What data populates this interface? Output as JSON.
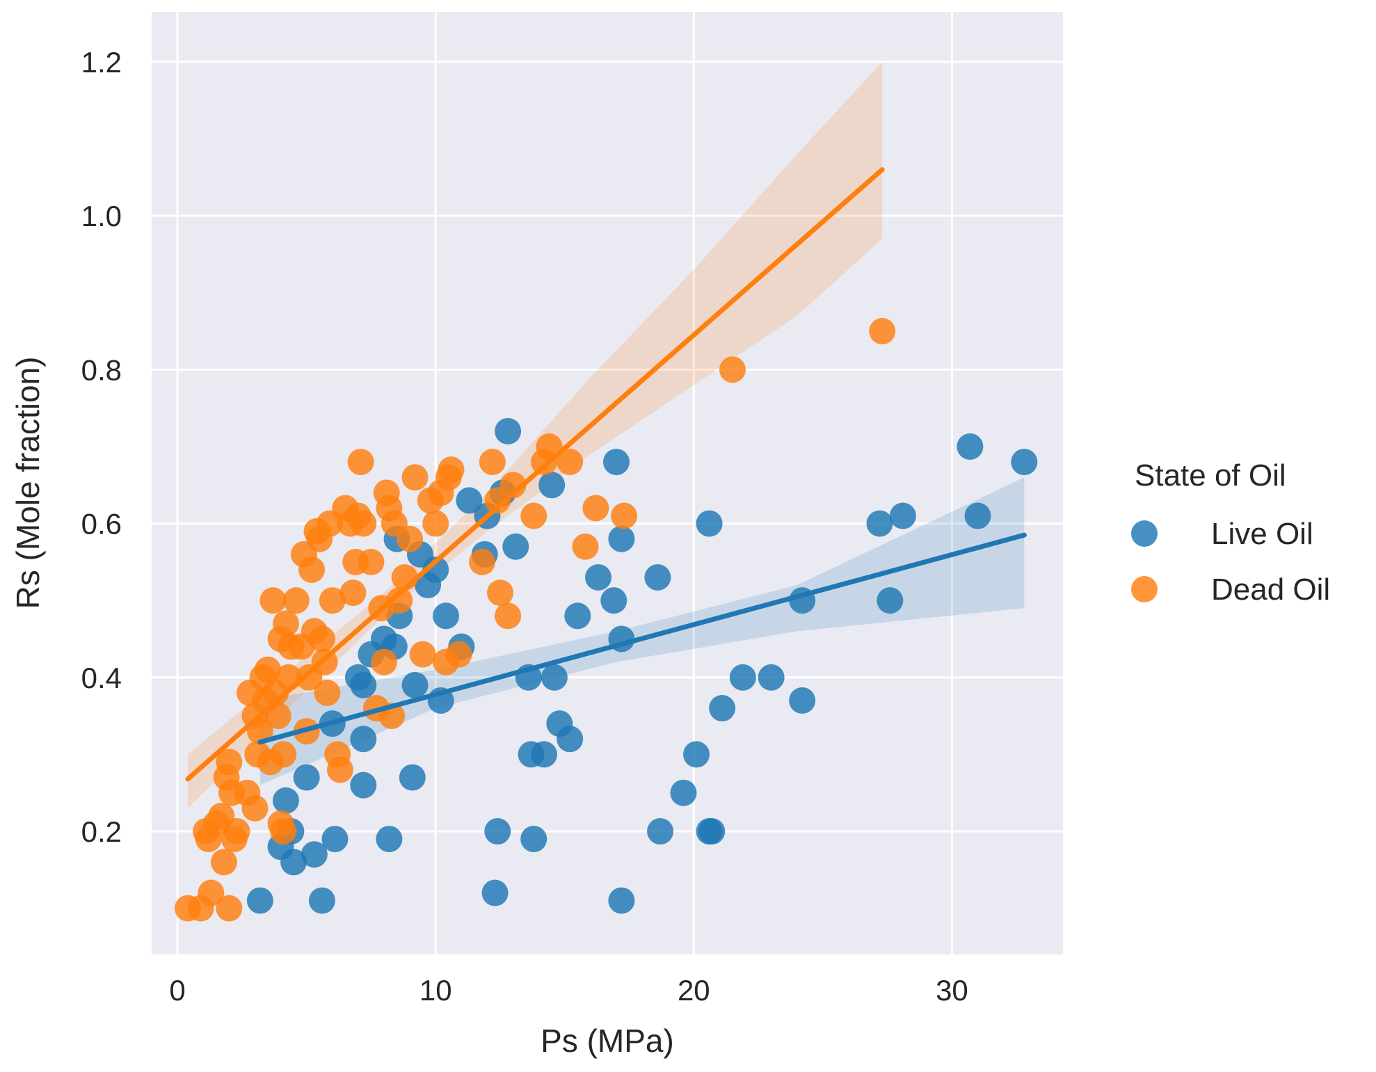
{
  "chart_data": {
    "type": "scatter",
    "xlabel": "Ps (MPa)",
    "ylabel": "Rs (Mole fraction)",
    "xlim": [
      -1,
      34.3
    ],
    "ylim": [
      0.04,
      1.265
    ],
    "xticks": [
      0,
      10,
      20,
      30
    ],
    "xtick_labels": [
      "0",
      "10",
      "20",
      "30"
    ],
    "yticks": [
      0.2,
      0.4,
      0.6,
      0.8,
      1.0,
      1.2
    ],
    "ytick_labels": [
      "0.2",
      "0.4",
      "0.6",
      "0.8",
      "1.0",
      "1.2"
    ],
    "grid": true,
    "background": "#eaeaf2",
    "legend": {
      "title": "State of Oil",
      "placement": "right",
      "entries": [
        "Live Oil",
        "Dead Oil"
      ]
    },
    "series": [
      {
        "name": "Live Oil",
        "color": "#1f77b4",
        "points": [
          [
            3.2,
            0.11
          ],
          [
            4.0,
            0.18
          ],
          [
            4.2,
            0.24
          ],
          [
            4.4,
            0.2
          ],
          [
            4.5,
            0.16
          ],
          [
            5.0,
            0.27
          ],
          [
            5.3,
            0.17
          ],
          [
            5.6,
            0.11
          ],
          [
            6.0,
            0.34
          ],
          [
            6.1,
            0.19
          ],
          [
            7.0,
            0.4
          ],
          [
            7.2,
            0.39
          ],
          [
            7.2,
            0.32
          ],
          [
            7.2,
            0.26
          ],
          [
            7.5,
            0.43
          ],
          [
            8.0,
            0.45
          ],
          [
            8.2,
            0.19
          ],
          [
            8.4,
            0.44
          ],
          [
            8.6,
            0.48
          ],
          [
            8.5,
            0.58
          ],
          [
            9.1,
            0.27
          ],
          [
            9.2,
            0.39
          ],
          [
            9.4,
            0.56
          ],
          [
            9.7,
            0.52
          ],
          [
            10.0,
            0.54
          ],
          [
            10.2,
            0.37
          ],
          [
            10.4,
            0.48
          ],
          [
            11.0,
            0.44
          ],
          [
            11.3,
            0.63
          ],
          [
            11.9,
            0.56
          ],
          [
            12.0,
            0.61
          ],
          [
            12.3,
            0.12
          ],
          [
            12.4,
            0.2
          ],
          [
            12.6,
            0.64
          ],
          [
            12.8,
            0.72
          ],
          [
            13.1,
            0.57
          ],
          [
            13.6,
            0.4
          ],
          [
            13.7,
            0.3
          ],
          [
            13.8,
            0.19
          ],
          [
            14.2,
            0.3
          ],
          [
            14.5,
            0.65
          ],
          [
            14.6,
            0.4
          ],
          [
            14.8,
            0.34
          ],
          [
            15.2,
            0.32
          ],
          [
            15.5,
            0.48
          ],
          [
            16.3,
            0.53
          ],
          [
            16.9,
            0.5
          ],
          [
            17.0,
            0.68
          ],
          [
            17.2,
            0.58
          ],
          [
            17.2,
            0.45
          ],
          [
            17.2,
            0.11
          ],
          [
            18.6,
            0.53
          ],
          [
            18.7,
            0.2
          ],
          [
            19.6,
            0.25
          ],
          [
            20.1,
            0.3
          ],
          [
            20.6,
            0.6
          ],
          [
            20.6,
            0.2
          ],
          [
            20.7,
            0.2
          ],
          [
            21.1,
            0.36
          ],
          [
            21.9,
            0.4
          ],
          [
            23.0,
            0.4
          ],
          [
            24.2,
            0.5
          ],
          [
            24.2,
            0.37
          ],
          [
            27.2,
            0.6
          ],
          [
            27.6,
            0.5
          ],
          [
            28.1,
            0.61
          ],
          [
            30.7,
            0.7
          ],
          [
            31.0,
            0.61
          ],
          [
            32.8,
            0.68
          ]
        ],
        "fit": {
          "x": [
            3.2,
            32.8
          ],
          "y": [
            0.316,
            0.585
          ]
        },
        "ci": {
          "x": [
            3.2,
            10.0,
            17.0,
            24.0,
            32.8
          ],
          "lower": [
            0.26,
            0.36,
            0.42,
            0.46,
            0.49
          ],
          "upper": [
            0.37,
            0.41,
            0.46,
            0.52,
            0.66
          ]
        }
      },
      {
        "name": "Dead Oil",
        "color": "#ff7f0e",
        "points": [
          [
            0.4,
            0.1
          ],
          [
            0.9,
            0.1
          ],
          [
            1.1,
            0.2
          ],
          [
            1.2,
            0.19
          ],
          [
            1.3,
            0.12
          ],
          [
            1.5,
            0.21
          ],
          [
            1.7,
            0.22
          ],
          [
            1.8,
            0.16
          ],
          [
            1.9,
            0.27
          ],
          [
            2.0,
            0.1
          ],
          [
            2.0,
            0.29
          ],
          [
            2.1,
            0.25
          ],
          [
            2.2,
            0.19
          ],
          [
            2.3,
            0.2
          ],
          [
            2.7,
            0.25
          ],
          [
            2.8,
            0.38
          ],
          [
            3.0,
            0.35
          ],
          [
            3.0,
            0.23
          ],
          [
            3.1,
            0.3
          ],
          [
            3.2,
            0.33
          ],
          [
            3.3,
            0.4
          ],
          [
            3.4,
            0.37
          ],
          [
            3.5,
            0.41
          ],
          [
            3.6,
            0.29
          ],
          [
            3.7,
            0.5
          ],
          [
            3.8,
            0.38
          ],
          [
            3.9,
            0.35
          ],
          [
            4.0,
            0.21
          ],
          [
            4.0,
            0.45
          ],
          [
            4.1,
            0.3
          ],
          [
            4.1,
            0.2
          ],
          [
            4.2,
            0.47
          ],
          [
            4.3,
            0.4
          ],
          [
            4.4,
            0.44
          ],
          [
            4.6,
            0.5
          ],
          [
            4.8,
            0.44
          ],
          [
            4.9,
            0.56
          ],
          [
            5.0,
            0.33
          ],
          [
            5.1,
            0.4
          ],
          [
            5.2,
            0.54
          ],
          [
            5.3,
            0.46
          ],
          [
            5.4,
            0.59
          ],
          [
            5.5,
            0.58
          ],
          [
            5.6,
            0.45
          ],
          [
            5.7,
            0.42
          ],
          [
            5.8,
            0.38
          ],
          [
            5.9,
            0.6
          ],
          [
            6.0,
            0.5
          ],
          [
            6.2,
            0.3
          ],
          [
            6.3,
            0.28
          ],
          [
            6.5,
            0.62
          ],
          [
            6.7,
            0.6
          ],
          [
            6.8,
            0.51
          ],
          [
            6.9,
            0.55
          ],
          [
            7.0,
            0.61
          ],
          [
            7.1,
            0.68
          ],
          [
            7.2,
            0.6
          ],
          [
            7.5,
            0.55
          ],
          [
            7.7,
            0.36
          ],
          [
            7.9,
            0.49
          ],
          [
            8.0,
            0.42
          ],
          [
            8.1,
            0.64
          ],
          [
            8.2,
            0.62
          ],
          [
            8.3,
            0.35
          ],
          [
            8.4,
            0.6
          ],
          [
            8.6,
            0.5
          ],
          [
            8.8,
            0.53
          ],
          [
            9.0,
            0.58
          ],
          [
            9.2,
            0.66
          ],
          [
            9.5,
            0.43
          ],
          [
            9.8,
            0.63
          ],
          [
            10.0,
            0.6
          ],
          [
            10.2,
            0.64
          ],
          [
            10.4,
            0.42
          ],
          [
            10.5,
            0.66
          ],
          [
            10.6,
            0.67
          ],
          [
            10.9,
            0.43
          ],
          [
            11.8,
            0.55
          ],
          [
            12.2,
            0.68
          ],
          [
            12.4,
            0.63
          ],
          [
            12.5,
            0.51
          ],
          [
            12.8,
            0.48
          ],
          [
            13.0,
            0.65
          ],
          [
            13.8,
            0.61
          ],
          [
            14.2,
            0.68
          ],
          [
            14.4,
            0.7
          ],
          [
            15.2,
            0.68
          ],
          [
            15.8,
            0.57
          ],
          [
            16.2,
            0.62
          ],
          [
            17.3,
            0.61
          ],
          [
            21.5,
            0.8
          ],
          [
            27.3,
            0.85
          ]
        ],
        "fit": {
          "x": [
            0.4,
            27.3
          ],
          "y": [
            0.268,
            1.06
          ]
        },
        "ci": {
          "x": [
            0.4,
            4.0,
            8.0,
            12.0,
            16.0,
            20.0,
            24.0,
            27.3
          ],
          "lower": [
            0.23,
            0.35,
            0.48,
            0.59,
            0.69,
            0.78,
            0.87,
            0.97
          ],
          "upper": [
            0.3,
            0.4,
            0.51,
            0.64,
            0.79,
            0.93,
            1.08,
            1.2
          ]
        }
      }
    ]
  }
}
